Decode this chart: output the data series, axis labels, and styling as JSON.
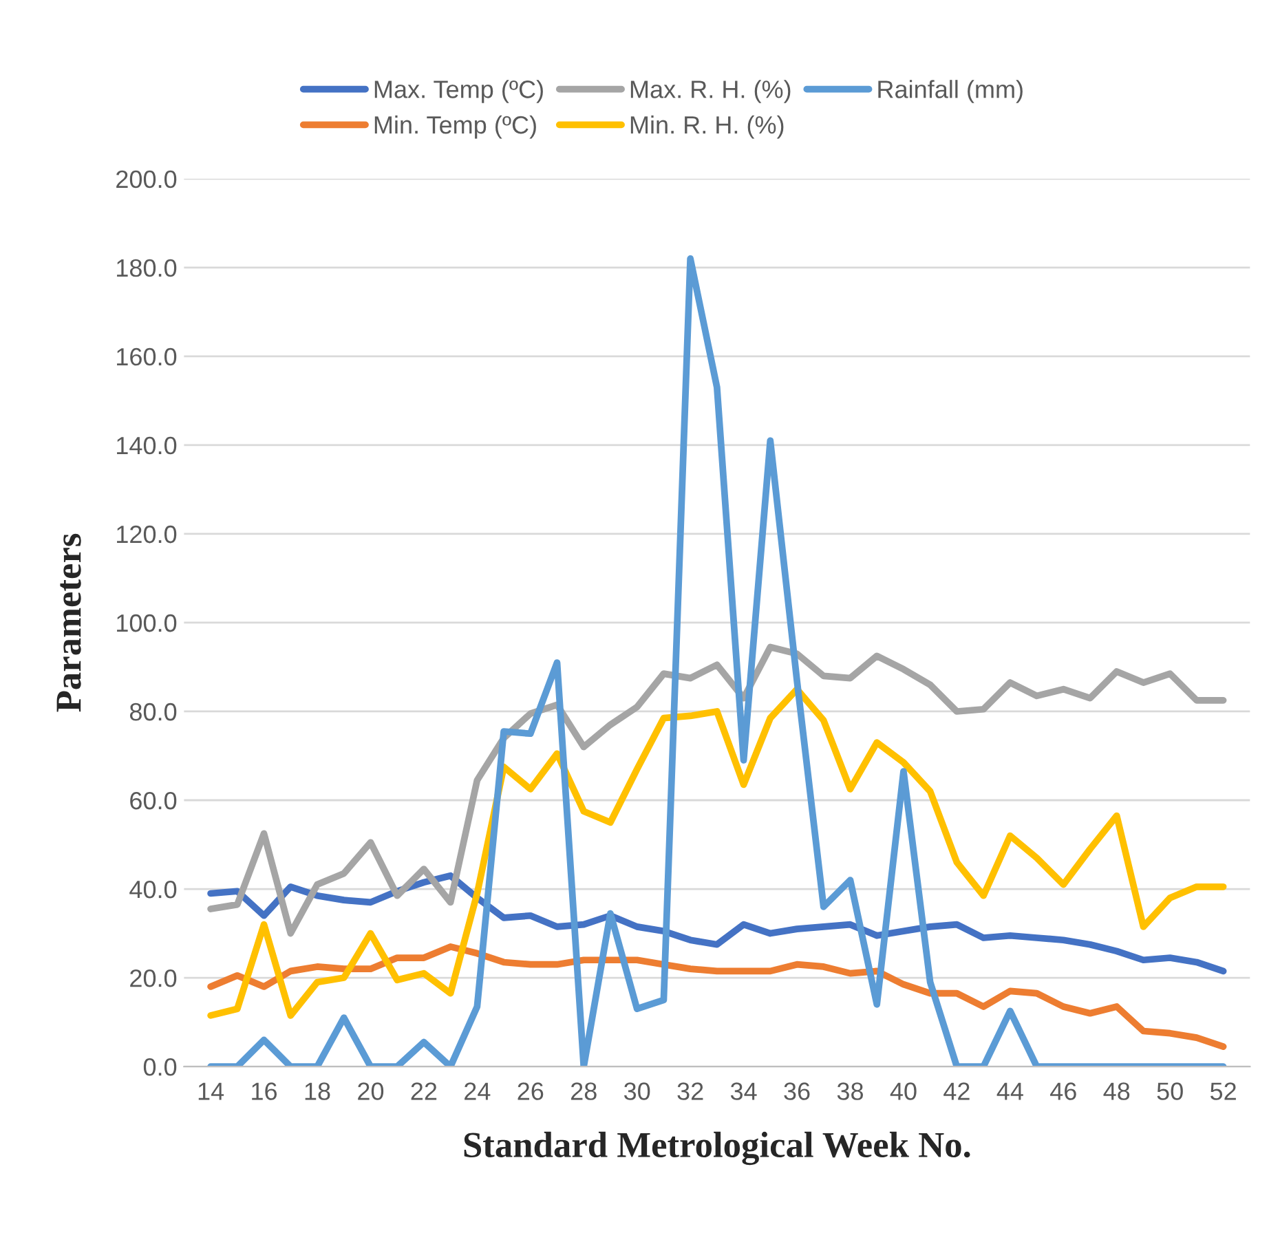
{
  "chart_data": {
    "type": "line",
    "xlabel": "Standard Metrological Week No.",
    "ylabel": "Parameters",
    "categories": [
      "14",
      null,
      "16",
      null,
      "18",
      null,
      "20",
      null,
      "22",
      null,
      "24",
      null,
      "26",
      null,
      "28",
      null,
      "30",
      null,
      "32",
      null,
      "34",
      null,
      "36",
      null,
      "38",
      null,
      "40",
      null,
      "42",
      null,
      "44",
      null,
      "46",
      null,
      "48",
      null,
      "50",
      null,
      "52"
    ],
    "series": [
      {
        "name": "Max. Temp (ºC)",
        "color": "#4472c4",
        "values": [
          39,
          39.5,
          34,
          40.5,
          38.5,
          37.5,
          37,
          39.5,
          41.5,
          43,
          38,
          33.5,
          34,
          31.5,
          32,
          34,
          31.5,
          30.5,
          28.5,
          27.5,
          32,
          30,
          31,
          31.5,
          32,
          29.5,
          30.5,
          31.5,
          32,
          29,
          29.5,
          29,
          28.5,
          27.5,
          26,
          24,
          24.5,
          23.5,
          21.5
        ]
      },
      {
        "name": "Min. Temp (ºC)",
        "color": "#ed7d31",
        "values": [
          18,
          20.5,
          18,
          21.5,
          22.5,
          22,
          22,
          24.5,
          24.5,
          27,
          25.5,
          23.5,
          23,
          23,
          24,
          24,
          24,
          23,
          22,
          21.5,
          21.5,
          21.5,
          23,
          22.5,
          21,
          21.5,
          18.5,
          16.5,
          16.5,
          13.5,
          17,
          16.5,
          13.5,
          12,
          13.5,
          8,
          7.5,
          6.5,
          4.5
        ]
      },
      {
        "name": "Max. R. H. (%)",
        "color": "#a5a5a5",
        "values": [
          35.5,
          36.5,
          52.5,
          30,
          41,
          43.5,
          50.5,
          38.5,
          44.5,
          37,
          64.5,
          74,
          79.5,
          81.5,
          72,
          77,
          81,
          88.5,
          87.5,
          90.5,
          83,
          94.5,
          93,
          88,
          87.5,
          92.5,
          89.5,
          86,
          80,
          80.5,
          86.5,
          83.5,
          85,
          83,
          89,
          86.5,
          88.5,
          82.5,
          82.5
        ]
      },
      {
        "name": "Min. R. H. (%)",
        "color": "#ffc000",
        "values": [
          11.5,
          13,
          32,
          11.5,
          19,
          20,
          30,
          19.5,
          21,
          16.5,
          39,
          67.5,
          62.5,
          70.5,
          57.5,
          55,
          67,
          78.5,
          79,
          80,
          63.5,
          78.5,
          85,
          78,
          62.5,
          73,
          68.5,
          62,
          46,
          38.5,
          52,
          47,
          41,
          49,
          56.5,
          31.5,
          38,
          40.5,
          40.5
        ]
      },
      {
        "name": "Rainfall (mm)",
        "color": "#5b9bd5",
        "values": [
          0,
          0,
          6,
          0,
          0,
          11,
          0,
          0,
          5.5,
          0,
          13.5,
          75.5,
          75,
          91,
          0,
          34.5,
          13,
          15,
          182,
          153,
          69,
          141,
          87,
          36,
          42,
          14,
          66.5,
          19,
          0,
          0,
          12.5,
          0,
          0,
          0,
          0,
          0,
          0,
          0,
          0
        ]
      }
    ],
    "ylim": [
      0,
      200
    ],
    "yticks": [
      {
        "value": 0,
        "label": "0.0"
      },
      {
        "value": 20,
        "label": "20.0"
      },
      {
        "value": 40,
        "label": "40.0"
      },
      {
        "value": 60,
        "label": "60.0"
      },
      {
        "value": 80,
        "label": "80.0"
      },
      {
        "value": 100,
        "label": "100.0"
      },
      {
        "value": 120,
        "label": "120.0"
      },
      {
        "value": 140,
        "label": "140.0"
      },
      {
        "value": 160,
        "label": "160.0"
      },
      {
        "value": 180,
        "label": "180.0"
      },
      {
        "value": 200,
        "label": "200.0"
      }
    ],
    "grid": "y",
    "legend": "top",
    "marker": "none",
    "line_style": "solid"
  }
}
